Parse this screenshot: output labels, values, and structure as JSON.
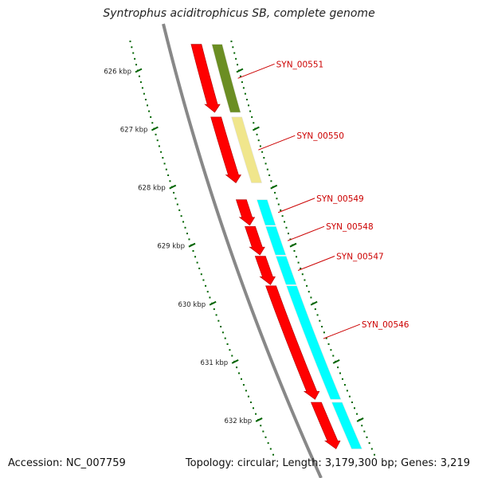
{
  "title": "Syntrophus aciditrophicus SB, complete genome",
  "footer": {
    "accession": "Accession: NC_007759",
    "summary": "Topology: circular; Length: 3,179,300 bp; Genes: 3,219"
  },
  "colors": {
    "backbone": "#888888",
    "forward_gene": "#ff0000",
    "cds_olive": "#6b8e23",
    "cds_khaki": "#f0e68c",
    "cds_cyan": "#00ffff",
    "tick": "#006400",
    "label": "#cc0000"
  },
  "scale": {
    "unit": "kbp",
    "ticks": [
      {
        "value": 626,
        "label": "626 kbp"
      },
      {
        "value": 627,
        "label": "627 kbp"
      },
      {
        "value": 628,
        "label": "628 kbp"
      },
      {
        "value": 629,
        "label": "629 kbp"
      },
      {
        "value": 630,
        "label": "630 kbp"
      },
      {
        "value": 631,
        "label": "631 kbp"
      },
      {
        "value": 632,
        "label": "632 kbp"
      }
    ]
  },
  "genes": [
    {
      "id": "SYN_00551",
      "label": "SYN_00551",
      "start": 625.55,
      "end": 626.72,
      "cds_color": "olive"
    },
    {
      "id": "SYN_00550",
      "label": "SYN_00550",
      "start": 626.8,
      "end": 627.93,
      "cds_color": "khaki"
    },
    {
      "id": "SYN_00549",
      "label": "SYN_00549",
      "start": 628.22,
      "end": 628.66,
      "cds_color": "cyan"
    },
    {
      "id": "SYN_00548",
      "label": "SYN_00548",
      "start": 628.68,
      "end": 629.17,
      "cds_color": "cyan"
    },
    {
      "id": "SYN_00547",
      "label": "SYN_00547",
      "start": 629.19,
      "end": 629.68,
      "cds_color": "cyan"
    },
    {
      "id": "SYN_00546",
      "label": "SYN_00546",
      "start": 629.7,
      "end": 631.65,
      "cds_color": "cyan"
    },
    {
      "id": "next-gene",
      "label": "",
      "start": 631.7,
      "end": 632.5,
      "cds_color": "cyan"
    }
  ]
}
